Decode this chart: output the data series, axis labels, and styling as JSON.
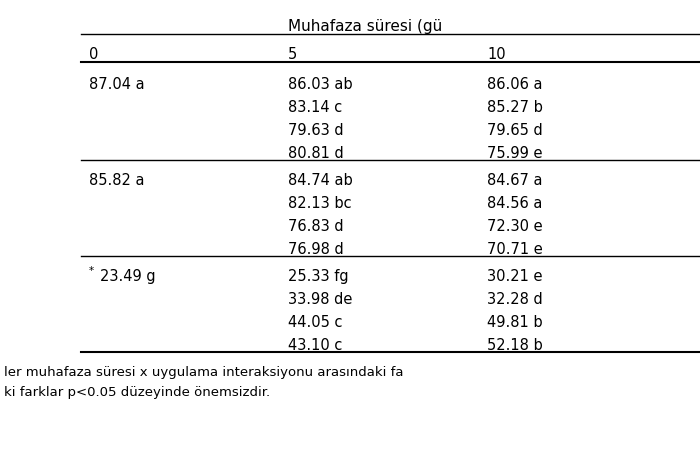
{
  "header": "Muhafaza süresi (gü",
  "col0_header": "0",
  "col1_header": "5",
  "col2_header": "10",
  "section1": {
    "row0": [
      "87.04 a",
      "86.03 ab",
      "86.06 a"
    ],
    "row1": [
      "",
      "83.14 c",
      "85.27 b"
    ],
    "row2": [
      "",
      "79.63 d",
      "79.65 d"
    ],
    "row3": [
      "",
      "80.81 d",
      "75.99 e"
    ]
  },
  "section2": {
    "row0": [
      "85.82 a",
      "84.74 ab",
      "84.67 a"
    ],
    "row1": [
      "",
      "82.13 bc",
      "84.56 a"
    ],
    "row2": [
      "",
      "76.83 d",
      "72.30 e"
    ],
    "row3": [
      "",
      "76.98 d",
      "70.71 e"
    ]
  },
  "section3": {
    "row0": [
      "*23.49 g",
      "25.33 fg",
      "30.21 e"
    ],
    "row1": [
      "",
      "33.98 de",
      "32.28 d"
    ],
    "row2": [
      "",
      "44.05 c",
      "49.81 b"
    ],
    "row3": [
      "",
      "43.10 c",
      "52.18 b"
    ]
  },
  "footnote1": "ler muhafaza süresi x uygulama interaksiyonu arasındaki fa",
  "footnote2": "ki farklar p<0.05 düzeyinde önemsizdir.",
  "bg_color": "#ffffff",
  "text_color": "#000000",
  "font_size": 10.5,
  "footnote_font_size": 9.5,
  "header_font_size": 11
}
